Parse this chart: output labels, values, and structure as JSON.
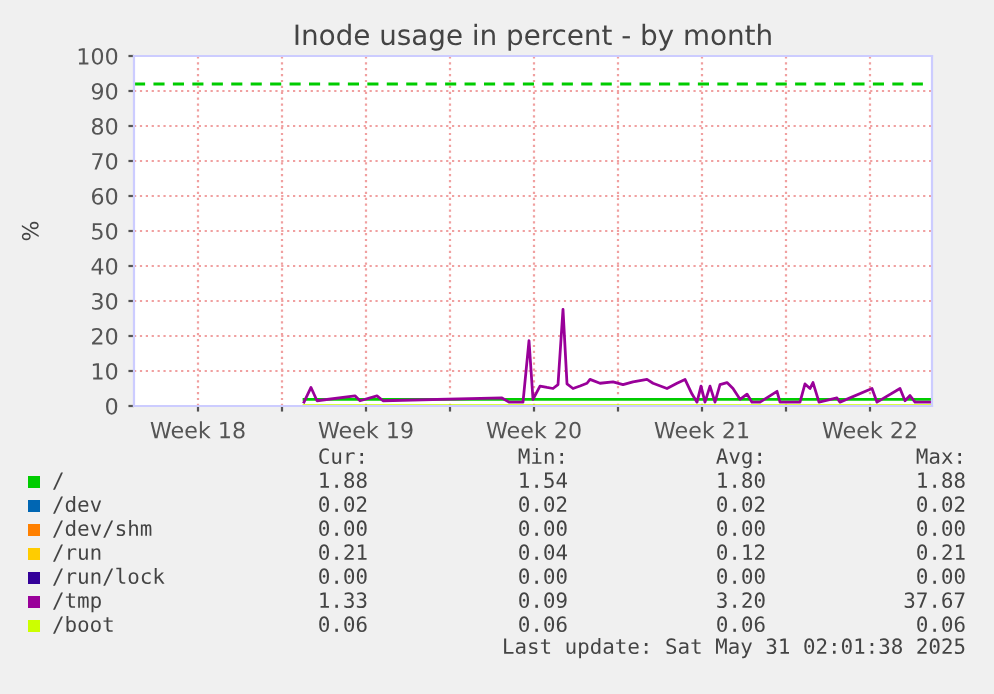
{
  "chart_data": {
    "type": "line",
    "title": "Inode usage in percent - by month",
    "ylabel": "%",
    "xlim": [
      "2025-04-27T20:00",
      "2025-05-31T02:00"
    ],
    "xticks": [
      {
        "value": "2025-04-30T12:00",
        "label": "Week 18"
      },
      {
        "value": "2025-05-04",
        "label": null
      },
      {
        "value": "2025-05-07T12:00",
        "label": "Week 19"
      },
      {
        "value": "2025-05-11",
        "label": null
      },
      {
        "value": "2025-05-14T12:00",
        "label": "Week 20"
      },
      {
        "value": "2025-05-18",
        "label": null
      },
      {
        "value": "2025-05-21T12:00",
        "label": "Week 21"
      },
      {
        "value": "2025-05-25",
        "label": null
      },
      {
        "value": "2025-05-28T12:00",
        "label": "Week 22"
      }
    ],
    "ylim": [
      0,
      100
    ],
    "yticks": [
      0,
      10,
      20,
      30,
      40,
      50,
      60,
      70,
      80,
      90,
      100
    ],
    "grid": true,
    "legend": "bottom",
    "ref_lines": [
      {
        "axis": "y",
        "value": 92,
        "color": "#00cc00",
        "line_style": "dashed"
      }
    ],
    "series": [
      {
        "name": "/",
        "color": "#00cc00",
        "x": [
          "2025-05-04T22:00",
          "2025-05-31T01:00"
        ],
        "values": [
          1.9,
          1.9
        ]
      },
      {
        "name": "/dev",
        "color": "#0066b3"
      },
      {
        "name": "/dev/shm",
        "color": "#ff8000"
      },
      {
        "name": "/run",
        "color": "#ffcc00"
      },
      {
        "name": "/run/lock",
        "color": "#330099"
      },
      {
        "name": "/tmp",
        "color": "#990099",
        "x": [
          "2025-05-04T22:00",
          "2025-05-05T05:00",
          "2025-05-05T11:00",
          "2025-05-07T01:00",
          "2025-05-07T06:00",
          "2025-05-07T23:00",
          "2025-05-08T05:00",
          "2025-05-13T04:00",
          "2025-05-13T11:00",
          "2025-05-14T01:00",
          "2025-05-14T07:00",
          "2025-05-14T11:00",
          "2025-05-14T18:00",
          "2025-05-15T01:00",
          "2025-05-15T07:00",
          "2025-05-15T12:00",
          "2025-05-15T17:00",
          "2025-05-15T21:00",
          "2025-05-16T03:00",
          "2025-05-16T10:00",
          "2025-05-16T17:00",
          "2025-05-16T20:00",
          "2025-05-17T06:00",
          "2025-05-17T19:00",
          "2025-05-18T05:00",
          "2025-05-18T15:00",
          "2025-05-19T05:00",
          "2025-05-19T11:00",
          "2025-05-20T01:00",
          "2025-05-20T11:00",
          "2025-05-20T19:00",
          "2025-05-21T02:00",
          "2025-05-21T07:00",
          "2025-05-21T11:00",
          "2025-05-21T15:00",
          "2025-05-21T20:00",
          "2025-05-22T01:00",
          "2025-05-22T06:00",
          "2025-05-22T13:00",
          "2025-05-22T19:00",
          "2025-05-23T02:00",
          "2025-05-23T09:00",
          "2025-05-23T14:00",
          "2025-05-23T22:00",
          "2025-05-24T15:00",
          "2025-05-24T18:00",
          "2025-05-25T14:00",
          "2025-05-25T19:00",
          "2025-05-26T00:00",
          "2025-05-26T03:00",
          "2025-05-26T09:00",
          "2025-05-27T03:00",
          "2025-05-27T06:00",
          "2025-05-28T14:00",
          "2025-05-28T19:00",
          "2025-05-29T18:00",
          "2025-05-29T23:00",
          "2025-05-30T04:00",
          "2025-05-30T09:00",
          "2025-05-31T01:00"
        ],
        "values": [
          1.1,
          5.3,
          1.5,
          2.9,
          1.5,
          2.9,
          1.5,
          2.3,
          1.1,
          1.1,
          18.7,
          1.9,
          5.7,
          5.3,
          5.0,
          6.1,
          27.6,
          6.3,
          5.0,
          5.7,
          6.5,
          7.6,
          6.5,
          6.9,
          6.1,
          6.9,
          7.6,
          6.5,
          5.0,
          6.5,
          7.6,
          3.4,
          1.1,
          5.7,
          1.1,
          5.7,
          1.1,
          6.1,
          6.7,
          5.0,
          1.9,
          3.4,
          1.1,
          1.1,
          4.2,
          1.1,
          1.1,
          6.3,
          5.0,
          6.7,
          1.1,
          2.3,
          1.1,
          5.0,
          1.1,
          5.0,
          1.5,
          3.0,
          1.1,
          1.1
        ]
      },
      {
        "name": "/boot",
        "color": "#ccff00",
        "x": [
          "2025-05-04T22:00",
          "2025-05-31T01:00"
        ],
        "values": [
          0.1,
          0.1
        ]
      }
    ],
    "annotations": [
      "Cur:",
      "Min:",
      "Avg:",
      "Max:",
      "1.88",
      "1.54",
      "1.80",
      "1.88",
      "0.02",
      "0.02",
      "0.02",
      "0.02",
      "0.00",
      "0.00",
      "0.00",
      "0.00",
      "0.21",
      "0.04",
      "0.12",
      "0.21",
      "0.00",
      "0.00",
      "0.00",
      "0.00",
      "1.33",
      "0.09",
      "3.20",
      "37.67",
      "0.06",
      "0.06",
      "0.06",
      "0.06",
      "Last update: Sat May 31 02:01:38 2025"
    ]
  }
}
